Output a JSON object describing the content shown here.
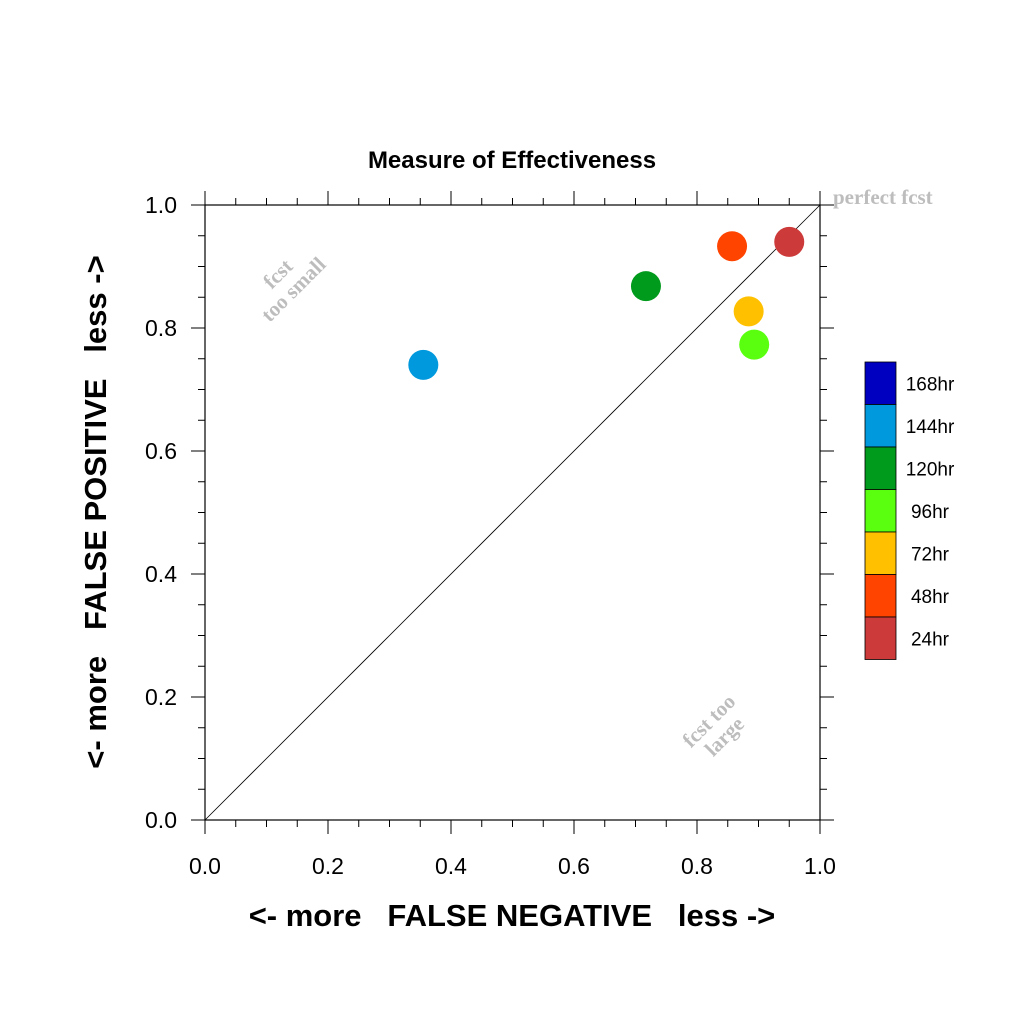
{
  "chart_data": {
    "type": "scatter",
    "title": "Measure of Effectiveness",
    "xlabel": "<- more   FALSE NEGATIVE   less ->",
    "ylabel": "<- more   FALSE POSITIVE   less ->",
    "xlim": [
      0.0,
      1.0
    ],
    "ylim": [
      0.0,
      1.0
    ],
    "xticks": [
      "0.0",
      "0.2",
      "0.4",
      "0.6",
      "0.8",
      "1.0"
    ],
    "yticks": [
      "0.0",
      "0.2",
      "0.4",
      "0.6",
      "0.8",
      "1.0"
    ],
    "grid": false,
    "diagonal_line": true,
    "annotations": {
      "perfect": "perfect fcst",
      "small_line1": "fcst",
      "small_line2": "too small",
      "large_line1": "fcst too",
      "large_line2": "large"
    },
    "legend": {
      "placement": "right",
      "entries": [
        {
          "label": "168hr",
          "color": "#0000c0"
        },
        {
          "label": "144hr",
          "color": "#0099dd"
        },
        {
          "label": "120hr",
          "color": "#009a1c"
        },
        {
          "label": "96hr",
          "color": "#5aff10"
        },
        {
          "label": "72hr",
          "color": "#ffc000"
        },
        {
          "label": "48hr",
          "color": "#ff4400"
        },
        {
          "label": "24hr",
          "color": "#cc3a3a"
        }
      ]
    },
    "points": [
      {
        "label": "144hr",
        "x": 0.355,
        "y": 0.74,
        "color": "#0099dd"
      },
      {
        "label": "120hr",
        "x": 0.717,
        "y": 0.868,
        "color": "#009a1c"
      },
      {
        "label": "96hr",
        "x": 0.893,
        "y": 0.773,
        "color": "#5aff10"
      },
      {
        "label": "72hr",
        "x": 0.884,
        "y": 0.827,
        "color": "#ffc000"
      },
      {
        "label": "48hr",
        "x": 0.857,
        "y": 0.933,
        "color": "#ff4400"
      },
      {
        "label": "24hr",
        "x": 0.95,
        "y": 0.94,
        "color": "#cc3a3a"
      }
    ]
  }
}
